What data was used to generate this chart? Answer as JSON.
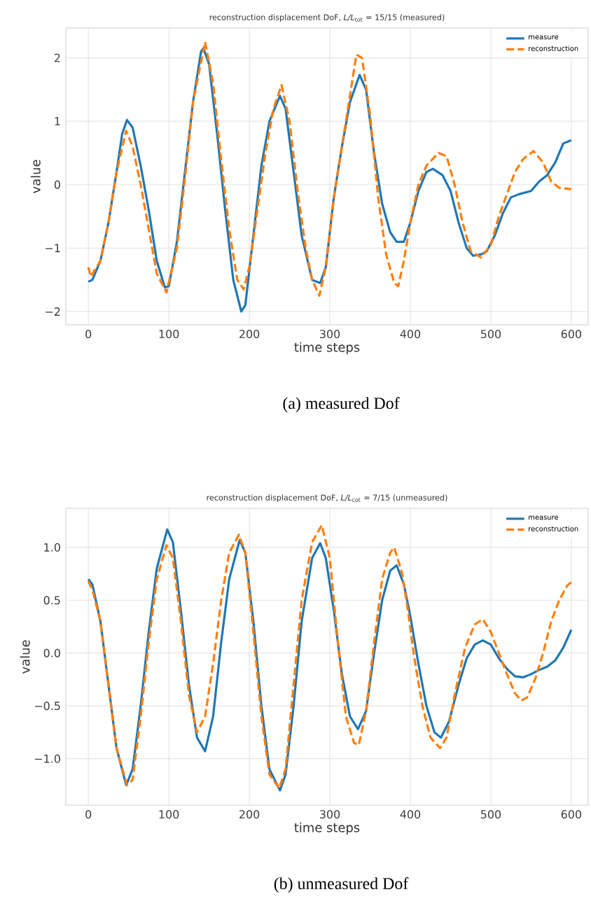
{
  "chart_data": [
    {
      "type": "line",
      "title": "reconstruction displacement DoF, *L/L*$_{tot}$ = 15/15 (measured)",
      "xlabel": "time steps",
      "ylabel": "value",
      "annotations": [
        "(a) measured Dof"
      ],
      "series": [
        {
          "name": "measure",
          "color": "#1f77b4",
          "line_style": "solid",
          "x": [
            0,
            5,
            15,
            25,
            35,
            42,
            48,
            55,
            65,
            75,
            85,
            95,
            100,
            110,
            120,
            130,
            140,
            143,
            150,
            160,
            170,
            180,
            190,
            195,
            205,
            215,
            225,
            238,
            245,
            255,
            265,
            278,
            288,
            295,
            305,
            315,
            325,
            337,
            345,
            355,
            365,
            375,
            383,
            392,
            400,
            410,
            420,
            428,
            440,
            450,
            460,
            470,
            478,
            488,
            495,
            505,
            515,
            525,
            535,
            550,
            560,
            570,
            580,
            590,
            600
          ],
          "values": [
            -1.53,
            -1.5,
            -1.2,
            -0.6,
            0.2,
            0.8,
            1.02,
            0.9,
            0.3,
            -0.4,
            -1.2,
            -1.62,
            -1.6,
            -0.9,
            0.2,
            1.3,
            2.1,
            2.15,
            1.9,
            0.8,
            -0.4,
            -1.5,
            -2.0,
            -1.9,
            -0.8,
            0.3,
            1.0,
            1.4,
            1.2,
            0.2,
            -0.8,
            -1.5,
            -1.55,
            -1.3,
            -0.2,
            0.6,
            1.3,
            1.73,
            1.5,
            0.5,
            -0.3,
            -0.75,
            -0.9,
            -0.9,
            -0.6,
            -0.1,
            0.2,
            0.25,
            0.15,
            -0.1,
            -0.6,
            -1.0,
            -1.12,
            -1.1,
            -1.05,
            -0.8,
            -0.45,
            -0.2,
            -0.15,
            -0.1,
            0.05,
            0.15,
            0.35,
            0.65,
            0.7
          ]
        },
        {
          "name": "reconstruction",
          "color": "#ff7f0e",
          "line_style": "dashed",
          "x": [
            0,
            3,
            15,
            25,
            35,
            47,
            55,
            65,
            75,
            85,
            97,
            110,
            120,
            130,
            145,
            155,
            165,
            175,
            185,
            193,
            200,
            210,
            220,
            230,
            240,
            250,
            260,
            270,
            278,
            287,
            295,
            305,
            320,
            333,
            340,
            350,
            360,
            370,
            380,
            385,
            392,
            400,
            410,
            420,
            435,
            445,
            455,
            465,
            475,
            488,
            500,
            510,
            520,
            530,
            540,
            553,
            565,
            575,
            585,
            600
          ],
          "values": [
            -1.3,
            -1.45,
            -1.2,
            -0.6,
            0.2,
            0.85,
            0.6,
            0.0,
            -0.7,
            -1.4,
            -1.7,
            -1.0,
            0.1,
            1.3,
            2.25,
            1.6,
            0.4,
            -0.7,
            -1.5,
            -1.65,
            -1.3,
            -0.4,
            0.5,
            1.2,
            1.57,
            1.0,
            -0.1,
            -1.0,
            -1.5,
            -1.75,
            -1.3,
            -0.2,
            1.0,
            2.05,
            2.0,
            1.1,
            -0.2,
            -1.1,
            -1.55,
            -1.6,
            -1.2,
            -0.6,
            0.0,
            0.3,
            0.5,
            0.45,
            0.0,
            -0.6,
            -1.05,
            -1.15,
            -0.95,
            -0.5,
            -0.15,
            0.2,
            0.4,
            0.53,
            0.35,
            0.05,
            -0.05,
            -0.07
          ]
        }
      ],
      "xlim": [
        -28,
        621
      ],
      "ylim": [
        -2.21,
        2.47
      ],
      "xticks": [
        0,
        100,
        200,
        300,
        400,
        500,
        600
      ],
      "yticks": [
        {
          "value": -2,
          "label": "−2"
        },
        {
          "value": -1,
          "label": "−1"
        },
        0,
        1,
        2
      ],
      "grid": true,
      "legend": "top right"
    },
    {
      "type": "line",
      "title": "reconstruction displacement DoF, *L/L*$_{cot}$ = 7/15 (unmeasured)",
      "xlabel": "time steps",
      "ylabel": "value",
      "annotations": [
        "(b) unmeasured Dof"
      ],
      "series": [
        {
          "name": "measure",
          "color": "#1f77b4",
          "line_style": "solid",
          "x": [
            0,
            5,
            15,
            25,
            35,
            47,
            55,
            65,
            75,
            85,
            98,
            105,
            115,
            125,
            135,
            145,
            155,
            165,
            175,
            188,
            195,
            205,
            215,
            225,
            238,
            245,
            255,
            265,
            278,
            288,
            295,
            305,
            315,
            325,
            335,
            345,
            355,
            365,
            375,
            383,
            392,
            400,
            410,
            420,
            430,
            438,
            448,
            460,
            470,
            480,
            490,
            500,
            510,
            520,
            530,
            540,
            550,
            560,
            570,
            580,
            590,
            600
          ],
          "values": [
            0.7,
            0.65,
            0.3,
            -0.3,
            -0.9,
            -1.25,
            -1.1,
            -0.5,
            0.2,
            0.8,
            1.17,
            1.05,
            0.4,
            -0.3,
            -0.8,
            -0.93,
            -0.6,
            0.1,
            0.7,
            1.07,
            0.95,
            0.3,
            -0.5,
            -1.1,
            -1.3,
            -1.15,
            -0.5,
            0.3,
            0.9,
            1.04,
            0.9,
            0.4,
            -0.2,
            -0.6,
            -0.72,
            -0.55,
            0.0,
            0.5,
            0.78,
            0.83,
            0.65,
            0.35,
            -0.1,
            -0.5,
            -0.75,
            -0.8,
            -0.65,
            -0.3,
            -0.05,
            0.08,
            0.12,
            0.08,
            -0.05,
            -0.15,
            -0.22,
            -0.23,
            -0.2,
            -0.16,
            -0.13,
            -0.07,
            0.05,
            0.22
          ]
        },
        {
          "name": "reconstruction",
          "color": "#ff7f0e",
          "line_style": "dashed",
          "x": [
            0,
            5,
            15,
            25,
            35,
            48,
            55,
            65,
            75,
            85,
            97,
            105,
            115,
            125,
            135,
            145,
            155,
            165,
            175,
            187,
            195,
            205,
            215,
            225,
            237,
            245,
            255,
            265,
            278,
            290,
            300,
            310,
            320,
            330,
            336,
            345,
            355,
            365,
            375,
            380,
            390,
            398,
            405,
            415,
            425,
            437,
            445,
            455,
            468,
            480,
            490,
            500,
            510,
            520,
            530,
            538,
            545,
            555,
            565,
            575,
            585,
            595,
            600
          ],
          "values": [
            0.68,
            0.6,
            0.3,
            -0.3,
            -0.9,
            -1.25,
            -1.2,
            -0.6,
            0.1,
            0.7,
            1.02,
            0.9,
            0.3,
            -0.4,
            -0.75,
            -0.6,
            -0.1,
            0.5,
            0.95,
            1.12,
            0.95,
            0.2,
            -0.6,
            -1.15,
            -1.28,
            -1.1,
            -0.3,
            0.5,
            1.05,
            1.21,
            0.9,
            0.1,
            -0.6,
            -0.85,
            -0.87,
            -0.55,
            0.1,
            0.7,
            0.95,
            1.0,
            0.75,
            0.35,
            -0.05,
            -0.5,
            -0.8,
            -0.9,
            -0.8,
            -0.4,
            0.05,
            0.27,
            0.32,
            0.2,
            0.0,
            -0.2,
            -0.38,
            -0.45,
            -0.42,
            -0.25,
            0.0,
            0.3,
            0.5,
            0.64,
            0.67
          ]
        }
      ],
      "xlim": [
        -28,
        621
      ],
      "ylim": [
        -1.44,
        1.37
      ],
      "xticks": [
        0,
        100,
        200,
        300,
        400,
        500,
        600
      ],
      "yticks": [
        {
          "value": -1,
          "label": "−1.0"
        },
        {
          "value": -0.5,
          "label": "−0.5"
        },
        {
          "value": 0,
          "label": "0.0"
        },
        {
          "value": 0.5,
          "label": "0.5"
        },
        {
          "value": 1,
          "label": "1.0"
        }
      ],
      "grid": true,
      "legend": "top right"
    }
  ]
}
